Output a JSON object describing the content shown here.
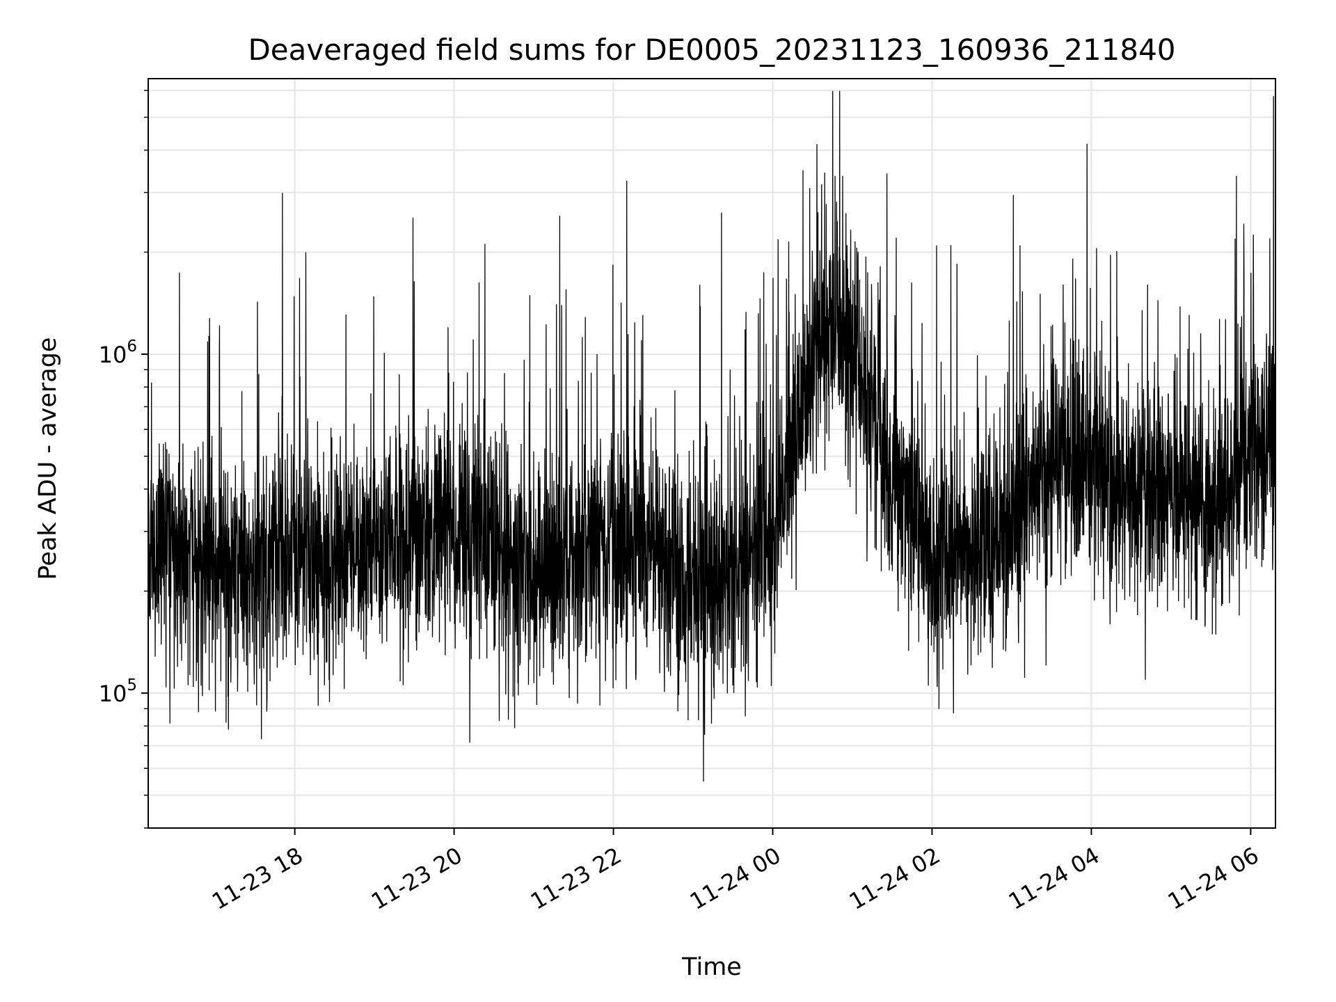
{
  "chart_data": {
    "type": "line",
    "title": "Deaveraged field sums for DE0005_20231123_160936_211840",
    "xlabel": "Time",
    "ylabel": "Peak ADU - average",
    "yscale": "log",
    "ylim": [
      40000,
      6500000
    ],
    "xlim": [
      "2023-11-23 16:09:36",
      "2023-11-24 06:18:40"
    ],
    "grid": true,
    "line_color": "#000000",
    "grid_color": "#e6e6e6",
    "x_ticks": [
      {
        "value": "2023-11-23 18:00",
        "label": "11-23 18"
      },
      {
        "value": "2023-11-23 20:00",
        "label": "11-23 20"
      },
      {
        "value": "2023-11-23 22:00",
        "label": "11-23 22"
      },
      {
        "value": "2023-11-24 00:00",
        "label": "11-24 00"
      },
      {
        "value": "2023-11-24 02:00",
        "label": "11-24 02"
      },
      {
        "value": "2023-11-24 04:00",
        "label": "11-24 04"
      },
      {
        "value": "2023-11-24 06:00",
        "label": "11-24 06"
      }
    ],
    "y_ticks": [
      {
        "value": 100000,
        "base": "10",
        "exp": "5"
      },
      {
        "value": 1000000,
        "base": "10",
        "exp": "6"
      }
    ],
    "series": [
      {
        "x": [
          "2023-11-23 16:09:36",
          "2023-11-23 16:30",
          "2023-11-23 17:00",
          "2023-11-23 17:30",
          "2023-11-23 18:00",
          "2023-11-23 18:30",
          "2023-11-23 19:00",
          "2023-11-23 19:30",
          "2023-11-23 20:00",
          "2023-11-23 20:30",
          "2023-11-23 21:00",
          "2023-11-23 21:30",
          "2023-11-23 22:00",
          "2023-11-23 22:30",
          "2023-11-23 23:00",
          "2023-11-23 23:30",
          "2023-11-24 00:00",
          "2023-11-24 00:15",
          "2023-11-24 00:30",
          "2023-11-24 00:45",
          "2023-11-24 01:00",
          "2023-11-24 01:30",
          "2023-11-24 02:00",
          "2023-11-24 02:30",
          "2023-11-24 03:00",
          "2023-11-24 03:30",
          "2023-11-24 04:00",
          "2023-11-24 04:30",
          "2023-11-24 05:00",
          "2023-11-24 05:30",
          "2023-11-24 06:00",
          "2023-11-24 06:18:40"
        ],
        "values": [
          280000,
          250000,
          240000,
          230000,
          260000,
          250000,
          270000,
          280000,
          330000,
          240000,
          220000,
          250000,
          280000,
          260000,
          210000,
          240000,
          300000,
          500000,
          950000,
          1300000,
          1000000,
          450000,
          250000,
          260000,
          330000,
          500000,
          450000,
          400000,
          380000,
          350000,
          480000,
          580000
        ]
      }
    ]
  }
}
